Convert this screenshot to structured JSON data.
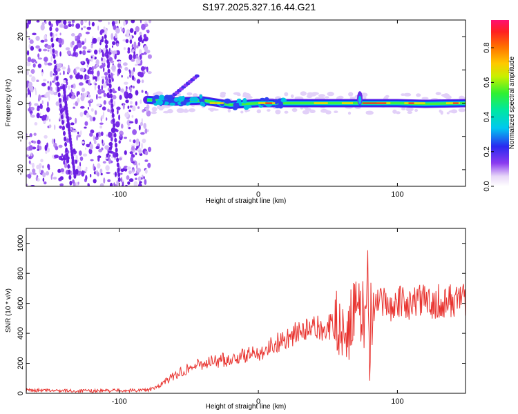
{
  "chart_data": [
    {
      "id": "spectrogram",
      "type": "heatmap",
      "title": "S197.2025.327.16.44.G21",
      "xlabel": "Height of straight line (km)",
      "ylabel": "Frequency (Hz)",
      "xlim": [
        -167,
        149
      ],
      "ylim": [
        -25,
        25
      ],
      "xticks": [
        -100,
        0,
        100
      ],
      "yticks": [
        -20,
        -10,
        0,
        10,
        20
      ],
      "colorbar": {
        "label": "Normalized spectral amplitude",
        "range": [
          0,
          0.96
        ],
        "ticks": [
          0.0,
          0.2,
          0.4,
          0.6,
          0.8
        ]
      },
      "noise_region_x": [
        -167,
        -78
      ],
      "signal_track": [
        {
          "x": -80,
          "f": 1.0
        },
        {
          "x": -60,
          "f": 0.5
        },
        {
          "x": -40,
          "f": 0.8
        },
        {
          "x": -20,
          "f": -0.5
        },
        {
          "x": 0,
          "f": 0.0
        },
        {
          "x": 20,
          "f": 0.0
        },
        {
          "x": 40,
          "f": 0.0
        },
        {
          "x": 60,
          "f": 0.0
        },
        {
          "x": 72,
          "f": 0.0
        },
        {
          "x": 80,
          "f": 0.0
        },
        {
          "x": 100,
          "f": 0.0
        },
        {
          "x": 120,
          "f": -0.2
        },
        {
          "x": 149,
          "f": 0.0
        }
      ]
    },
    {
      "id": "snr",
      "type": "line",
      "xlabel": "Height of straight line (km)",
      "ylabel": "SNR (10 * v/v)",
      "xlim": [
        -167,
        149
      ],
      "ylim": [
        0,
        1100
      ],
      "xticks": [
        -100,
        0,
        100
      ],
      "yticks": [
        0,
        200,
        400,
        600,
        800,
        1000
      ],
      "color": "#e8322e",
      "x": [
        -167,
        -150,
        -130,
        -110,
        -90,
        -80,
        -75,
        -70,
        -60,
        -50,
        -40,
        -30,
        -20,
        -10,
        0,
        10,
        20,
        30,
        40,
        50,
        60,
        65,
        70,
        75,
        80,
        85,
        90,
        100,
        110,
        120,
        130,
        140,
        149
      ],
      "values": [
        20,
        18,
        15,
        18,
        20,
        22,
        30,
        60,
        120,
        170,
        200,
        215,
        230,
        250,
        270,
        320,
        370,
        410,
        430,
        440,
        450,
        480,
        500,
        520,
        560,
        580,
        590,
        600,
        605,
        610,
        615,
        620,
        625
      ]
    }
  ]
}
